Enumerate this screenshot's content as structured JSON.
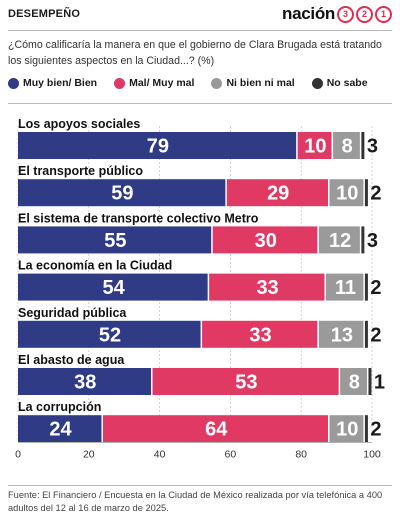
{
  "header": {
    "section": "DESEMPEÑO",
    "brand_text": "nación",
    "brand_digits": [
      "3",
      "2",
      "1"
    ]
  },
  "question": "¿Cómo calificaría la manera en que el gobierno de Clara Brugada está tratando los siguientes aspectos en la Ciudad...? (%)",
  "legend": [
    {
      "label": "Muy bien/ Bien",
      "color": "#2f3b84"
    },
    {
      "label": "Mal/ Muy mal",
      "color": "#e03a64"
    },
    {
      "label": "Ni bien ni mal",
      "color": "#9a9a9a"
    },
    {
      "label": "No sabe",
      "color": "#333333"
    }
  ],
  "chart_data": {
    "type": "bar",
    "orientation": "horizontal",
    "stacked": true,
    "categories": [
      "Los apoyos sociales",
      "El transporte público",
      "El sistema de transporte colectivo Metro",
      "La economía en la Ciudad",
      "Seguridad pública",
      "El abasto de agua",
      "La corrupción"
    ],
    "series": [
      {
        "name": "Muy bien/ Bien",
        "color": "#2f3b84",
        "values": [
          79,
          59,
          55,
          54,
          52,
          38,
          24
        ]
      },
      {
        "name": "Mal/ Muy mal",
        "color": "#e03a64",
        "values": [
          10,
          29,
          30,
          33,
          33,
          53,
          64
        ]
      },
      {
        "name": "Ni bien ni mal",
        "color": "#9a9a9a",
        "values": [
          8,
          10,
          12,
          11,
          13,
          8,
          10
        ]
      },
      {
        "name": "No sabe",
        "color": "#333333",
        "values": [
          3,
          2,
          3,
          2,
          2,
          1,
          2
        ]
      }
    ],
    "xlim": [
      0,
      100
    ],
    "xticks": [
      0,
      20,
      40,
      60,
      80,
      100
    ],
    "grid": true
  },
  "footer": "Fuente: El Financiero / Encuesta en la Ciudad de México realizada por vía telefónica a 400 adultos del 12 al 16 de marzo de 2025."
}
